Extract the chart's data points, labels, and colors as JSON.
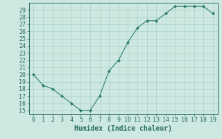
{
  "x": [
    0,
    1,
    2,
    3,
    4,
    5,
    6,
    7,
    8,
    9,
    10,
    11,
    12,
    13,
    14,
    15,
    16,
    17,
    18,
    19
  ],
  "y": [
    20,
    18.5,
    18,
    17,
    16,
    15,
    15,
    17,
    20.5,
    22,
    24.5,
    26.5,
    27.5,
    27.5,
    28.5,
    29.5,
    29.5,
    29.5,
    29.5,
    28.5
  ],
  "line_color": "#2d7d6e",
  "marker_color": "#2d7d6e",
  "bg_color": "#cce8e0",
  "grid_color_major": "#aacfc8",
  "grid_color_minor": "#c0ddd8",
  "xlabel": "Humidex (Indice chaleur)",
  "ylabel": "",
  "xlim": [
    -0.5,
    19.5
  ],
  "ylim": [
    14.5,
    30.0
  ],
  "yticks": [
    15,
    16,
    17,
    18,
    19,
    20,
    21,
    22,
    23,
    24,
    25,
    26,
    27,
    28,
    29
  ],
  "xticks": [
    0,
    1,
    2,
    3,
    4,
    5,
    6,
    7,
    8,
    9,
    10,
    11,
    12,
    13,
    14,
    15,
    16,
    17,
    18,
    19
  ],
  "tick_color": "#2d6e60",
  "label_fontsize": 7,
  "axis_color": "#2d6e60"
}
